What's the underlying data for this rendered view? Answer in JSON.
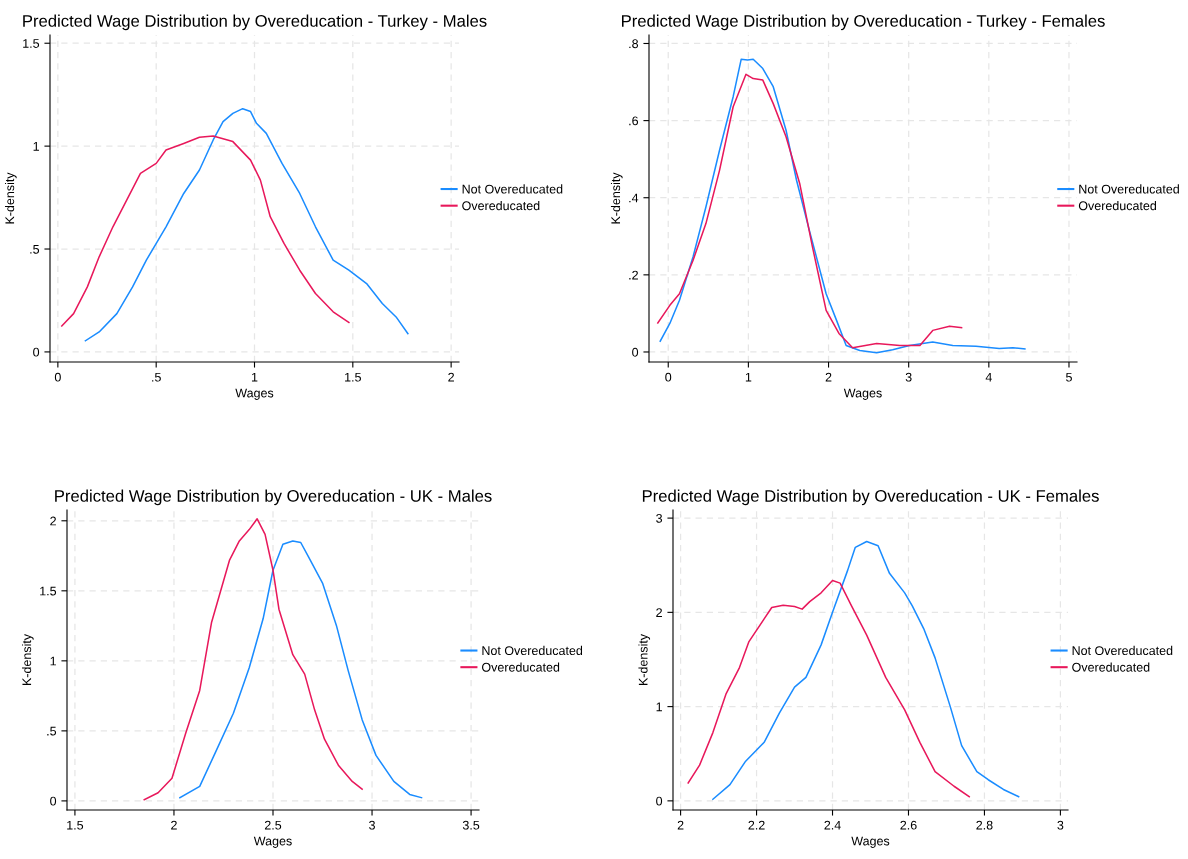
{
  "chart_data": [
    {
      "type": "line",
      "title": "Predicted Wage Distribution by Overeducation - Turkey - Males",
      "xlabel": "Wages",
      "ylabel": "K-density",
      "xlim": [
        -0.04,
        2.04
      ],
      "ylim": [
        -0.049,
        1.54
      ],
      "xticks": [
        0,
        {
          "value": 0.5,
          "label": ".5"
        },
        1,
        1.5,
        2
      ],
      "yticks": [
        0,
        {
          "value": 0.5,
          "label": ".5"
        },
        1,
        1.5
      ],
      "grid": true,
      "legend": "right",
      "line_style": "solid",
      "marker": "none",
      "series": [
        {
          "name": "Not Overeducated",
          "color": "#1a8cff",
          "x": [
            0.14,
            0.21,
            0.3,
            0.38,
            0.45,
            0.55,
            0.64,
            0.72,
            0.79,
            0.84,
            0.89,
            0.94,
            0.98,
            1.01,
            1.06,
            1.14,
            1.23,
            1.31,
            1.4,
            1.48,
            1.57,
            1.65,
            1.72,
            1.78
          ],
          "values": [
            0.054,
            0.097,
            0.186,
            0.316,
            0.446,
            0.608,
            0.77,
            0.884,
            1.03,
            1.119,
            1.159,
            1.182,
            1.168,
            1.111,
            1.062,
            0.916,
            0.77,
            0.608,
            0.446,
            0.397,
            0.332,
            0.235,
            0.17,
            0.089
          ]
        },
        {
          "name": "Overeducated",
          "color": "#e8185b",
          "x": [
            0.02,
            0.08,
            0.15,
            0.21,
            0.28,
            0.35,
            0.42,
            0.5,
            0.55,
            0.64,
            0.72,
            0.79,
            0.89,
            0.98,
            1.03,
            1.08,
            1.15,
            1.23,
            1.31,
            1.4,
            1.48
          ],
          "values": [
            0.126,
            0.186,
            0.316,
            0.462,
            0.608,
            0.738,
            0.868,
            0.916,
            0.981,
            1.013,
            1.043,
            1.049,
            1.022,
            0.932,
            0.835,
            0.657,
            0.527,
            0.397,
            0.284,
            0.195,
            0.143
          ]
        }
      ]
    },
    {
      "type": "line",
      "title": "Predicted Wage Distribution by Overeducation - Turkey - Females",
      "xlabel": "Wages",
      "ylabel": "K-density",
      "xlim": [
        -0.24,
        5.1
      ],
      "ylim": [
        -0.026,
        0.822
      ],
      "xticks": [
        0,
        1,
        2,
        3,
        4,
        5
      ],
      "yticks": [
        0,
        {
          "value": 0.2,
          "label": ".2"
        },
        {
          "value": 0.4,
          "label": ".4"
        },
        {
          "value": 0.6,
          "label": ".6"
        },
        {
          "value": 0.8,
          "label": ".8"
        }
      ],
      "grid": true,
      "legend": "right",
      "line_style": "solid",
      "marker": "none",
      "series": [
        {
          "name": "Not Overeducated",
          "color": "#1a8cff",
          "x": [
            -0.1,
            0.02,
            0.14,
            0.31,
            0.47,
            0.64,
            0.81,
            0.91,
            0.99,
            1.06,
            1.18,
            1.31,
            1.47,
            1.6,
            1.76,
            1.97,
            2.1,
            2.22,
            2.39,
            2.6,
            2.8,
            3.01,
            3.3,
            3.55,
            3.84,
            4.13,
            4.3,
            4.45
          ],
          "values": [
            0.028,
            0.074,
            0.134,
            0.247,
            0.376,
            0.523,
            0.662,
            0.759,
            0.757,
            0.759,
            0.735,
            0.688,
            0.575,
            0.446,
            0.316,
            0.151,
            0.082,
            0.017,
            0.004,
            -0.002,
            0.006,
            0.017,
            0.026,
            0.017,
            0.015,
            0.009,
            0.011,
            0.008
          ]
        },
        {
          "name": "Overeducated",
          "color": "#e8185b",
          "x": [
            -0.13,
            0.02,
            0.14,
            0.31,
            0.47,
            0.64,
            0.81,
            0.97,
            1.06,
            1.18,
            1.31,
            1.47,
            1.64,
            1.8,
            1.97,
            2.13,
            2.3,
            2.6,
            2.89,
            3.14,
            3.3,
            3.51,
            3.66
          ],
          "values": [
            0.075,
            0.121,
            0.151,
            0.238,
            0.333,
            0.471,
            0.636,
            0.72,
            0.709,
            0.705,
            0.644,
            0.558,
            0.437,
            0.272,
            0.108,
            0.048,
            0.011,
            0.022,
            0.017,
            0.017,
            0.056,
            0.067,
            0.063
          ]
        }
      ]
    },
    {
      "type": "line",
      "title": "Predicted Wage Distribution by Overeducation - UK - Males",
      "xlabel": "Wages",
      "ylabel": "K-density",
      "xlim": [
        1.46,
        3.54
      ],
      "ylim": [
        -0.065,
        2.077
      ],
      "xticks": [
        1.5,
        2,
        2.5,
        3,
        3.5
      ],
      "yticks": [
        0,
        {
          "value": 0.5,
          "label": ".5"
        },
        1,
        1.5,
        2
      ],
      "grid": true,
      "legend": "right",
      "line_style": "solid",
      "marker": "none",
      "series": [
        {
          "name": "Not Overeducated",
          "color": "#1a8cff",
          "x": [
            2.03,
            2.13,
            2.21,
            2.3,
            2.38,
            2.45,
            2.5,
            2.55,
            2.6,
            2.64,
            2.68,
            2.75,
            2.82,
            2.88,
            2.95,
            3.02,
            3.11,
            3.19,
            3.25
          ],
          "values": [
            0.023,
            0.104,
            0.348,
            0.626,
            0.951,
            1.3,
            1.647,
            1.833,
            1.856,
            1.845,
            1.74,
            1.555,
            1.253,
            0.928,
            0.58,
            0.325,
            0.139,
            0.046,
            0.023
          ]
        },
        {
          "name": "Overeducated",
          "color": "#e8185b",
          "x": [
            1.85,
            1.92,
            1.99,
            2.06,
            2.13,
            2.19,
            2.28,
            2.33,
            2.38,
            2.42,
            2.46,
            2.5,
            2.53,
            2.6,
            2.66,
            2.71,
            2.76,
            2.83,
            2.9,
            2.95
          ],
          "values": [
            0.009,
            0.058,
            0.162,
            0.487,
            0.789,
            1.276,
            1.717,
            1.856,
            1.937,
            2.014,
            1.903,
            1.647,
            1.369,
            1.044,
            0.905,
            0.65,
            0.441,
            0.255,
            0.139,
            0.084
          ]
        }
      ]
    },
    {
      "type": "line",
      "title": "Predicted Wage Distribution by Overeducation - UK - Females",
      "xlabel": "Wages",
      "ylabel": "K-density",
      "xlim": [
        1.98,
        3.02
      ],
      "ylim": [
        -0.097,
        3.086
      ],
      "xticks": [
        2,
        2.2,
        2.4,
        2.6,
        2.8,
        3
      ],
      "yticks": [
        0,
        1,
        2,
        3
      ],
      "grid": true,
      "legend": "right",
      "line_style": "solid",
      "marker": "none",
      "series": [
        {
          "name": "Not Overeducated",
          "color": "#1a8cff",
          "x": [
            2.085,
            2.13,
            2.17,
            2.22,
            2.26,
            2.3,
            2.33,
            2.37,
            2.4,
            2.44,
            2.46,
            2.49,
            2.52,
            2.55,
            2.59,
            2.61,
            2.64,
            2.67,
            2.71,
            2.74,
            2.78,
            2.81,
            2.85,
            2.89
          ],
          "values": [
            0.017,
            0.172,
            0.414,
            0.621,
            0.931,
            1.207,
            1.31,
            1.655,
            2.0,
            2.448,
            2.69,
            2.752,
            2.707,
            2.414,
            2.207,
            2.069,
            1.828,
            1.517,
            1.0,
            0.586,
            0.31,
            0.224,
            0.121,
            0.045
          ]
        },
        {
          "name": "Overeducated",
          "color": "#e8185b",
          "x": [
            2.02,
            2.05,
            2.085,
            2.12,
            2.155,
            2.18,
            2.22,
            2.24,
            2.27,
            2.3,
            2.32,
            2.34,
            2.37,
            2.4,
            2.42,
            2.45,
            2.49,
            2.54,
            2.59,
            2.63,
            2.67,
            2.72,
            2.76
          ],
          "values": [
            0.19,
            0.379,
            0.724,
            1.138,
            1.414,
            1.69,
            1.931,
            2.052,
            2.076,
            2.062,
            2.034,
            2.114,
            2.207,
            2.338,
            2.31,
            2.069,
            1.759,
            1.31,
            0.966,
            0.621,
            0.31,
            0.155,
            0.045
          ]
        }
      ]
    }
  ]
}
